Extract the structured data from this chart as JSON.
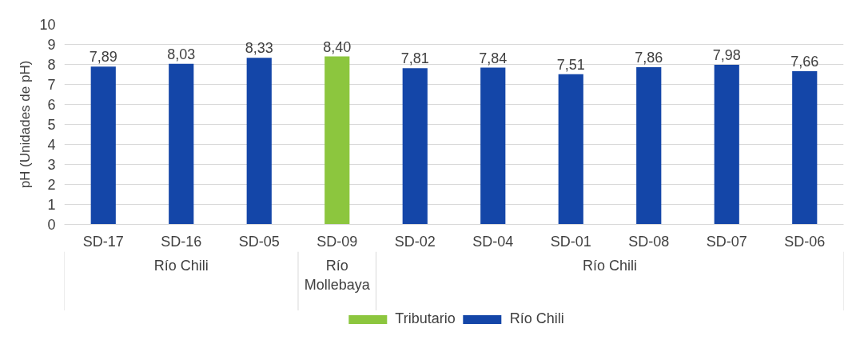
{
  "chart_data": {
    "type": "bar",
    "ylabel": "pH (Unidades de pH)",
    "categories": [
      "SD-17",
      "SD-16",
      "SD-05",
      "SD-09",
      "SD-02",
      "SD-04",
      "SD-01",
      "SD-08",
      "SD-07",
      "SD-06"
    ],
    "series": [
      {
        "name": "Tributario",
        "color": "#8cc63e",
        "values": [
          null,
          null,
          null,
          8.4,
          null,
          null,
          null,
          null,
          null,
          null
        ],
        "value_labels": [
          null,
          null,
          null,
          "8,40",
          null,
          null,
          null,
          null,
          null,
          null
        ]
      },
      {
        "name": "Río Chili",
        "color": "#1446a8",
        "values": [
          7.89,
          8.03,
          8.33,
          null,
          7.81,
          7.84,
          7.51,
          7.86,
          7.98,
          7.66
        ],
        "value_labels": [
          "7,89",
          "8,03",
          "8,33",
          null,
          "7,81",
          "7,84",
          "7,51",
          "7,86",
          "7,98",
          "7,66"
        ]
      }
    ],
    "annotations": [
      "Río Chili",
      "Río Mollebaya",
      "Río Chili"
    ],
    "ylim": [
      0,
      10
    ],
    "yticks": [
      0,
      1,
      2,
      3,
      4,
      5,
      6,
      7,
      8,
      9,
      10
    ],
    "grid": "y",
    "legend": "bottom"
  }
}
